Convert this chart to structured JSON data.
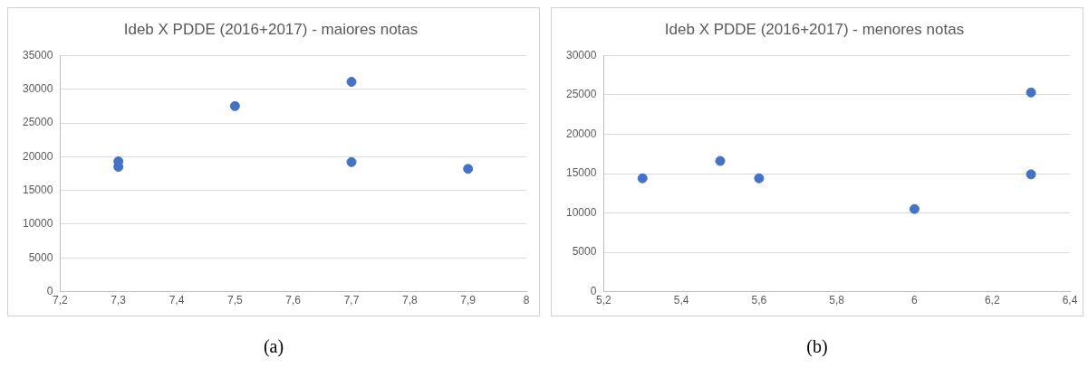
{
  "chart_data": [
    {
      "type": "scatter",
      "title": "Ideb X PDDE (2016+2017) - maiores notas",
      "x": [
        7.3,
        7.3,
        7.5,
        7.7,
        7.7,
        7.9
      ],
      "values": [
        19300,
        18500,
        27500,
        31100,
        19200,
        18200
      ],
      "color": "#4472c4",
      "marker": "circle",
      "grid": "y",
      "xlim": [
        7.2,
        8
      ],
      "xticks": [
        {
          "value": 7.2,
          "label": "7,2"
        },
        {
          "value": 7.3,
          "label": "7,3"
        },
        {
          "value": 7.4,
          "label": "7,4"
        },
        {
          "value": 7.5,
          "label": "7,5"
        },
        {
          "value": 7.6,
          "label": "7,6"
        },
        {
          "value": 7.7,
          "label": "7,7"
        },
        {
          "value": 7.8,
          "label": "7,8"
        },
        {
          "value": 7.9,
          "label": "7,9"
        },
        8
      ],
      "ylim": [
        0,
        35000
      ],
      "yticks": [
        0,
        5000,
        10000,
        15000,
        20000,
        25000,
        30000,
        35000
      ],
      "annotations": [
        "(a)"
      ]
    },
    {
      "type": "scatter",
      "title": "Ideb X PDDE (2016+2017) - menores notas",
      "x": [
        5.3,
        5.5,
        5.6,
        6,
        6.3,
        6.3
      ],
      "values": [
        14400,
        16600,
        14400,
        10500,
        25300,
        14900
      ],
      "color": "#4472c4",
      "marker": "circle",
      "grid": "y",
      "xlim": [
        5.2,
        6.4
      ],
      "xticks": [
        {
          "value": 5.2,
          "label": "5,2"
        },
        {
          "value": 5.4,
          "label": "5,4"
        },
        {
          "value": 5.6,
          "label": "5,6"
        },
        {
          "value": 5.8,
          "label": "5,8"
        },
        6,
        {
          "value": 6.2,
          "label": "6,2"
        },
        {
          "value": 6.4,
          "label": "6,4"
        }
      ],
      "ylim": [
        0,
        30000
      ],
      "yticks": [
        0,
        5000,
        10000,
        15000,
        20000,
        25000,
        30000
      ],
      "annotations": [
        "(b)"
      ]
    }
  ]
}
